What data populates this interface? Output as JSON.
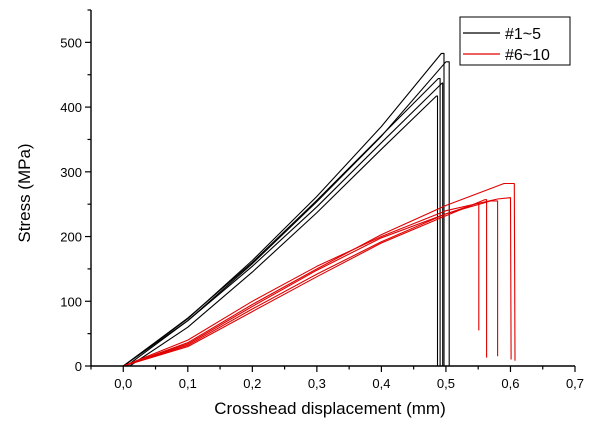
{
  "chart_data": {
    "type": "line",
    "title": "",
    "xlabel": "Crosshead displacement (mm)",
    "ylabel": "Stress (MPa)",
    "xlim": [
      -0.05,
      0.7
    ],
    "ylim": [
      0,
      550
    ],
    "x_ticks": [
      0.0,
      0.1,
      0.2,
      0.3,
      0.4,
      0.5,
      0.6,
      0.7
    ],
    "x_tick_labels": [
      "0,0",
      "0,1",
      "0,2",
      "0,3",
      "0,4",
      "0,5",
      "0,6",
      "0,7"
    ],
    "y_ticks": [
      0,
      100,
      200,
      300,
      400,
      500
    ],
    "y_tick_labels": [
      "0",
      "100",
      "200",
      "300",
      "400",
      "500"
    ],
    "grid": false,
    "legend_position": "top-right",
    "legend": [
      {
        "label": "#1~5",
        "color": "#000000"
      },
      {
        "label": "#6~10",
        "color": "#e00000"
      }
    ],
    "series": [
      {
        "group": "#1~5",
        "color": "#000000",
        "x": [
          0.0,
          0.1,
          0.2,
          0.3,
          0.4,
          0.488,
          0.491,
          0.491
        ],
        "y": [
          0,
          74,
          160,
          256,
          356,
          444,
          444,
          0
        ]
      },
      {
        "group": "#1~5",
        "color": "#000000",
        "x": [
          0.005,
          0.1,
          0.2,
          0.3,
          0.4,
          0.494,
          0.495,
          0.495
        ],
        "y": [
          0,
          70,
          154,
          246,
          345,
          437,
          437,
          0
        ]
      },
      {
        "group": "#1~5",
        "color": "#000000",
        "x": [
          0.01,
          0.1,
          0.2,
          0.3,
          0.4,
          0.485,
          0.487,
          0.487
        ],
        "y": [
          0,
          60,
          145,
          237,
          335,
          417,
          417,
          0
        ]
      },
      {
        "group": "#1~5",
        "color": "#000000",
        "x": [
          0.0,
          0.1,
          0.2,
          0.3,
          0.4,
          0.493,
          0.497,
          0.497
        ],
        "y": [
          0,
          73,
          163,
          262,
          370,
          483,
          483,
          0
        ]
      },
      {
        "group": "#1~5",
        "color": "#000000",
        "x": [
          0.0,
          0.1,
          0.2,
          0.3,
          0.4,
          0.5,
          0.505,
          0.505
        ],
        "y": [
          0,
          70,
          158,
          254,
          355,
          470,
          470,
          0
        ]
      },
      {
        "group": "#6~10",
        "color": "#e00000",
        "x": [
          0.0,
          0.1,
          0.2,
          0.3,
          0.4,
          0.5,
          0.56,
          0.563,
          0.563
        ],
        "y": [
          0,
          30,
          84,
          138,
          190,
          232,
          257,
          257,
          13
        ]
      },
      {
        "group": "#6~10",
        "color": "#e00000",
        "x": [
          0.0,
          0.1,
          0.2,
          0.3,
          0.4,
          0.5,
          0.57,
          0.58,
          0.58
        ],
        "y": [
          0,
          32,
          88,
          142,
          192,
          235,
          255,
          255,
          15
        ]
      },
      {
        "group": "#6~10",
        "color": "#e00000",
        "x": [
          0.0,
          0.1,
          0.2,
          0.3,
          0.4,
          0.5,
          0.58,
          0.6,
          0.601
        ],
        "y": [
          0,
          40,
          100,
          154,
          200,
          240,
          258,
          260,
          10
        ]
      },
      {
        "group": "#6~10",
        "color": "#e00000",
        "x": [
          0.0,
          0.1,
          0.2,
          0.3,
          0.4,
          0.5,
          0.59,
          0.606,
          0.607
        ],
        "y": [
          0,
          36,
          95,
          150,
          203,
          248,
          282,
          282,
          8
        ]
      },
      {
        "group": "#6~10",
        "color": "#e00000",
        "x": [
          0.0,
          0.1,
          0.2,
          0.3,
          0.4,
          0.5,
          0.548,
          0.551,
          0.551
        ],
        "y": [
          0,
          34,
          92,
          148,
          198,
          235,
          251,
          251,
          55
        ]
      }
    ]
  }
}
